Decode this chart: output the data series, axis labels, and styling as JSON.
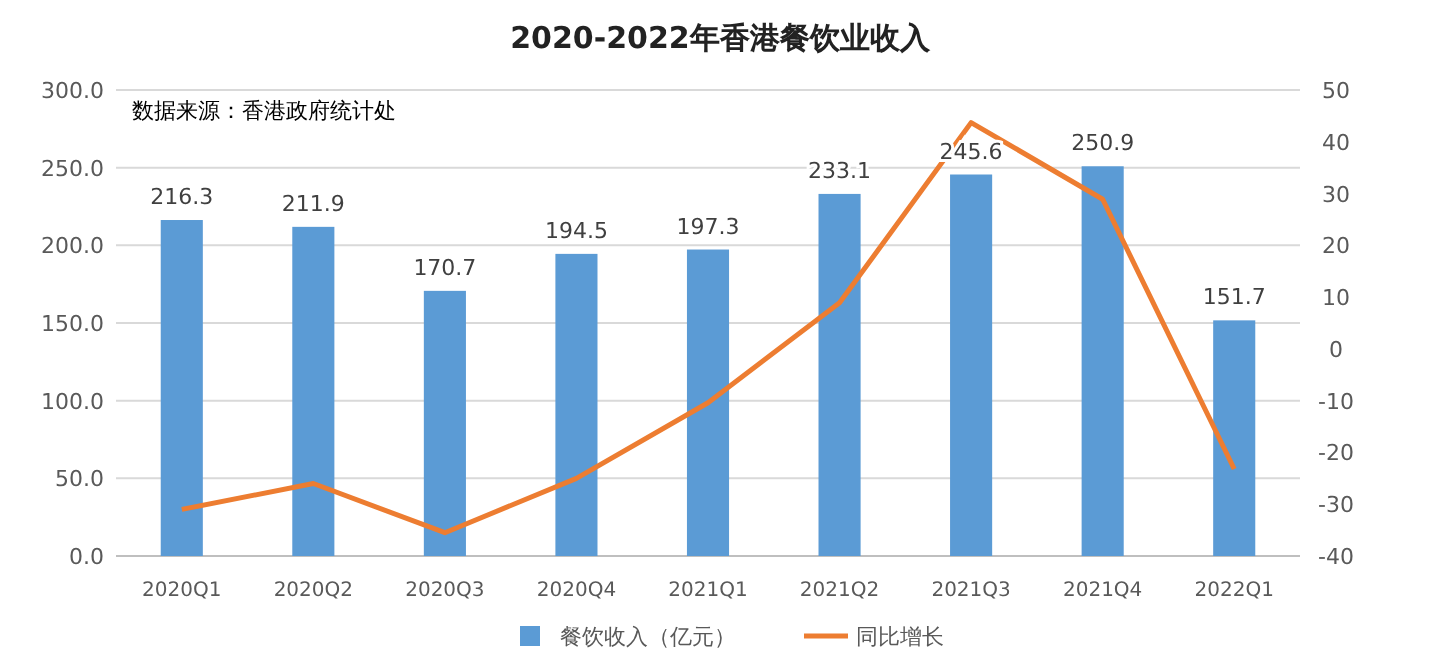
{
  "chart_data": {
    "type": "bar",
    "title": "2020-2022年香港餐饮业收入",
    "categories": [
      "2020Q1",
      "2020Q2",
      "2020Q3",
      "2020Q4",
      "2021Q1",
      "2021Q2",
      "2021Q3",
      "2021Q4",
      "2022Q1"
    ],
    "series": [
      {
        "name": "餐饮收入（亿元）",
        "color": "#5b9bd5",
        "values": [
          216.3,
          211.9,
          170.7,
          194.5,
          197.3,
          233.1,
          245.6,
          250.9,
          151.7
        ],
        "value_labels": [
          "216.3",
          "211.9",
          "170.7",
          "194.5",
          "197.3",
          "233.1",
          "245.6",
          "250.9",
          "151.7"
        ]
      },
      {
        "name": "同比增长",
        "type": "line",
        "axis": "y2",
        "color": "#ed7d31",
        "values": [
          -31,
          -26,
          -35.5,
          -25,
          -10.4,
          8.9,
          43.7,
          28.9,
          -23.2
        ]
      }
    ],
    "ylim": [
      0,
      300
    ],
    "yticks": [
      {
        "value": 0,
        "label": "0.0"
      },
      {
        "value": 50,
        "label": "50.0"
      },
      {
        "value": 100,
        "label": "100.0"
      },
      {
        "value": 150,
        "label": "150.0"
      },
      {
        "value": 200,
        "label": "200.0"
      },
      {
        "value": 250,
        "label": "250.0"
      },
      {
        "value": 300,
        "label": "300.0"
      }
    ],
    "y2lim": [
      -40,
      50
    ],
    "y2ticks": [
      -40,
      -30,
      -20,
      -10,
      0,
      10,
      20,
      30,
      40,
      50
    ],
    "grid": "y",
    "legend": "bottom",
    "annotations": [
      "数据来源：香港政府统计处"
    ]
  }
}
